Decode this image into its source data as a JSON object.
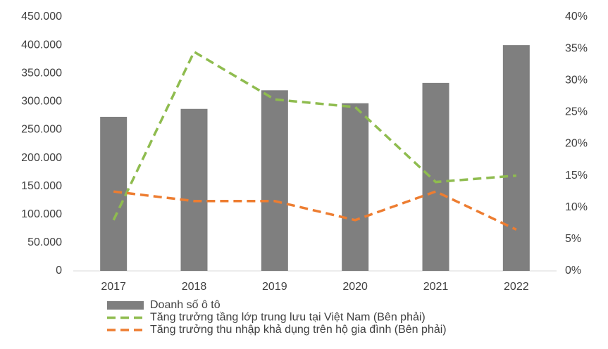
{
  "chart_data": {
    "type": "bar",
    "categories": [
      "2017",
      "2018",
      "2019",
      "2020",
      "2021",
      "2022"
    ],
    "series": [
      {
        "name": "Doanh số ô tô",
        "type": "bar",
        "color": "#7f7f7f",
        "values": [
          273000,
          287000,
          320000,
          297000,
          333000,
          400000
        ]
      },
      {
        "name": "Tăng trưởng tầng lớp trung lưu tại Việt Nam (Bên phải)",
        "type": "line",
        "style": "dashed",
        "axis": "y2",
        "color": "#8fbc4f",
        "values": [
          8,
          34.5,
          27,
          25.8,
          14,
          15
        ]
      },
      {
        "name": "Tăng trưởng thu nhập khả dụng trên hộ gia đình (Bên phải)",
        "type": "line",
        "style": "dashed",
        "axis": "y2",
        "color": "#ed7d31",
        "values": [
          12.5,
          11,
          11,
          8,
          12.5,
          6.5
        ]
      }
    ],
    "ylim": [
      0,
      450000
    ],
    "yticks": [
      0,
      {
        "value": 50000,
        "label": "50.000"
      },
      {
        "value": 100000,
        "label": "100.000"
      },
      {
        "value": 150000,
        "label": "150.000"
      },
      {
        "value": 200000,
        "label": "200.000"
      },
      {
        "value": 250000,
        "label": "250.000"
      },
      {
        "value": 300000,
        "label": "300.000"
      },
      {
        "value": 350000,
        "label": "350.000"
      },
      {
        "value": 400000,
        "label": "400.000"
      },
      {
        "value": 450000,
        "label": "450.000"
      }
    ],
    "y2lim": [
      0,
      40
    ],
    "y2ticks": [
      {
        "value": 0,
        "label": "0%"
      },
      {
        "value": 5,
        "label": "5%"
      },
      {
        "value": 10,
        "label": "10%"
      },
      {
        "value": 15,
        "label": "15%"
      },
      {
        "value": 20,
        "label": "20%"
      },
      {
        "value": 25,
        "label": "25%"
      },
      {
        "value": 30,
        "label": "30%"
      },
      {
        "value": 35,
        "label": "35%"
      },
      {
        "value": 40,
        "label": "40%"
      }
    ],
    "grid": false,
    "legend": "bottom"
  }
}
